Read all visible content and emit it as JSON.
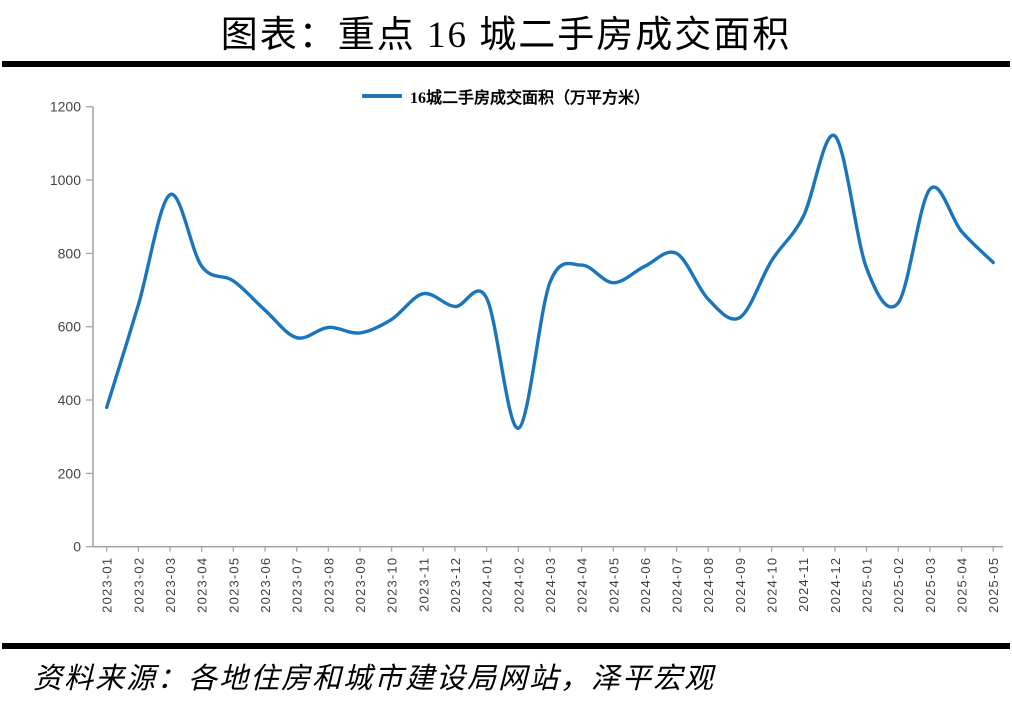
{
  "title": "图表：重点 16 城二手房成交面积",
  "legend": {
    "label": "16城二手房成交面积（万平方米）"
  },
  "source": "资料来源：各地住房和城市建设局网站，泽平宏观",
  "colors": {
    "line_blue": "#1B75BC",
    "axis_gray": "#A6A6A6",
    "tick_label_gray": "#3F3F3F",
    "rule_black": "#000000"
  },
  "chart_data": {
    "type": "line",
    "title": "图表：重点 16 城二手房成交面积",
    "series_name": "16城二手房成交面积（万平方米）",
    "x": [
      "2023-01",
      "2023-02",
      "2023-03",
      "2023-04",
      "2023-05",
      "2023-06",
      "2023-07",
      "2023-08",
      "2023-09",
      "2023-10",
      "2023-11",
      "2023-12",
      "2024-01",
      "2024-02",
      "2024-03",
      "2024-04",
      "2024-05",
      "2024-06",
      "2024-07",
      "2024-08",
      "2024-09",
      "2024-10",
      "2024-11",
      "2024-12",
      "2025-01",
      "2025-02",
      "2025-03",
      "2025-04",
      "2025-05"
    ],
    "values": [
      380,
      660,
      960,
      765,
      725,
      645,
      570,
      598,
      583,
      620,
      690,
      655,
      678,
      323,
      720,
      768,
      720,
      765,
      800,
      675,
      625,
      780,
      900,
      1120,
      760,
      665,
      975,
      860,
      775
    ],
    "ylabel": "",
    "xlabel": "",
    "ylim": [
      0,
      1200
    ],
    "ytick_step": 200,
    "yticks": [
      0,
      200,
      400,
      600,
      800,
      1000,
      1200
    ],
    "smooth": true,
    "grid": false,
    "legend_position": "top-center",
    "line_color": "#1B75BC",
    "x_label_rotation": -90
  }
}
